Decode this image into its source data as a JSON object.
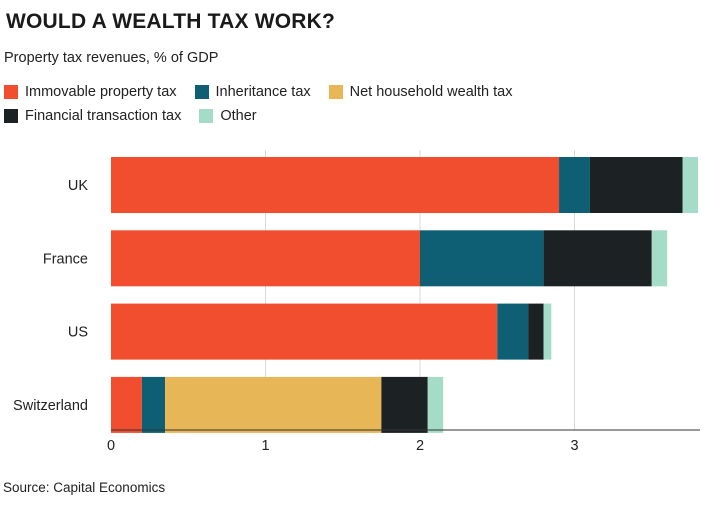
{
  "chart_data": {
    "type": "bar",
    "orientation": "horizontal",
    "stacked": true,
    "title": "WOULD A WEALTH TAX WORK?",
    "subtitle": "Property tax revenues, % of GDP",
    "source": "Source: Capital Economics",
    "categories": [
      "UK",
      "France",
      "US",
      "Switzerland"
    ],
    "series": [
      {
        "name": "Immovable property tax",
        "color": "#f04e2f",
        "values": [
          2.9,
          2.0,
          2.5,
          0.2
        ]
      },
      {
        "name": "Inheritance tax",
        "color": "#0e5f73",
        "values": [
          0.2,
          0.8,
          0.2,
          0.15
        ]
      },
      {
        "name": "Net household wealth tax",
        "color": "#e7b656",
        "values": [
          0,
          0,
          0,
          1.4
        ]
      },
      {
        "name": "Financial transaction tax",
        "color": "#1c2223",
        "values": [
          0.6,
          0.7,
          0.1,
          0.3
        ]
      },
      {
        "name": "Other",
        "color": "#a5dcc8",
        "values": [
          0.1,
          0.1,
          0.05,
          0.1
        ]
      }
    ],
    "xlim": [
      0,
      3.8
    ],
    "xticks": [
      "0",
      "1",
      "2",
      "3"
    ],
    "tick_values": [
      0,
      1,
      2,
      3
    ],
    "grid": "vertical",
    "legend_position": "top"
  }
}
